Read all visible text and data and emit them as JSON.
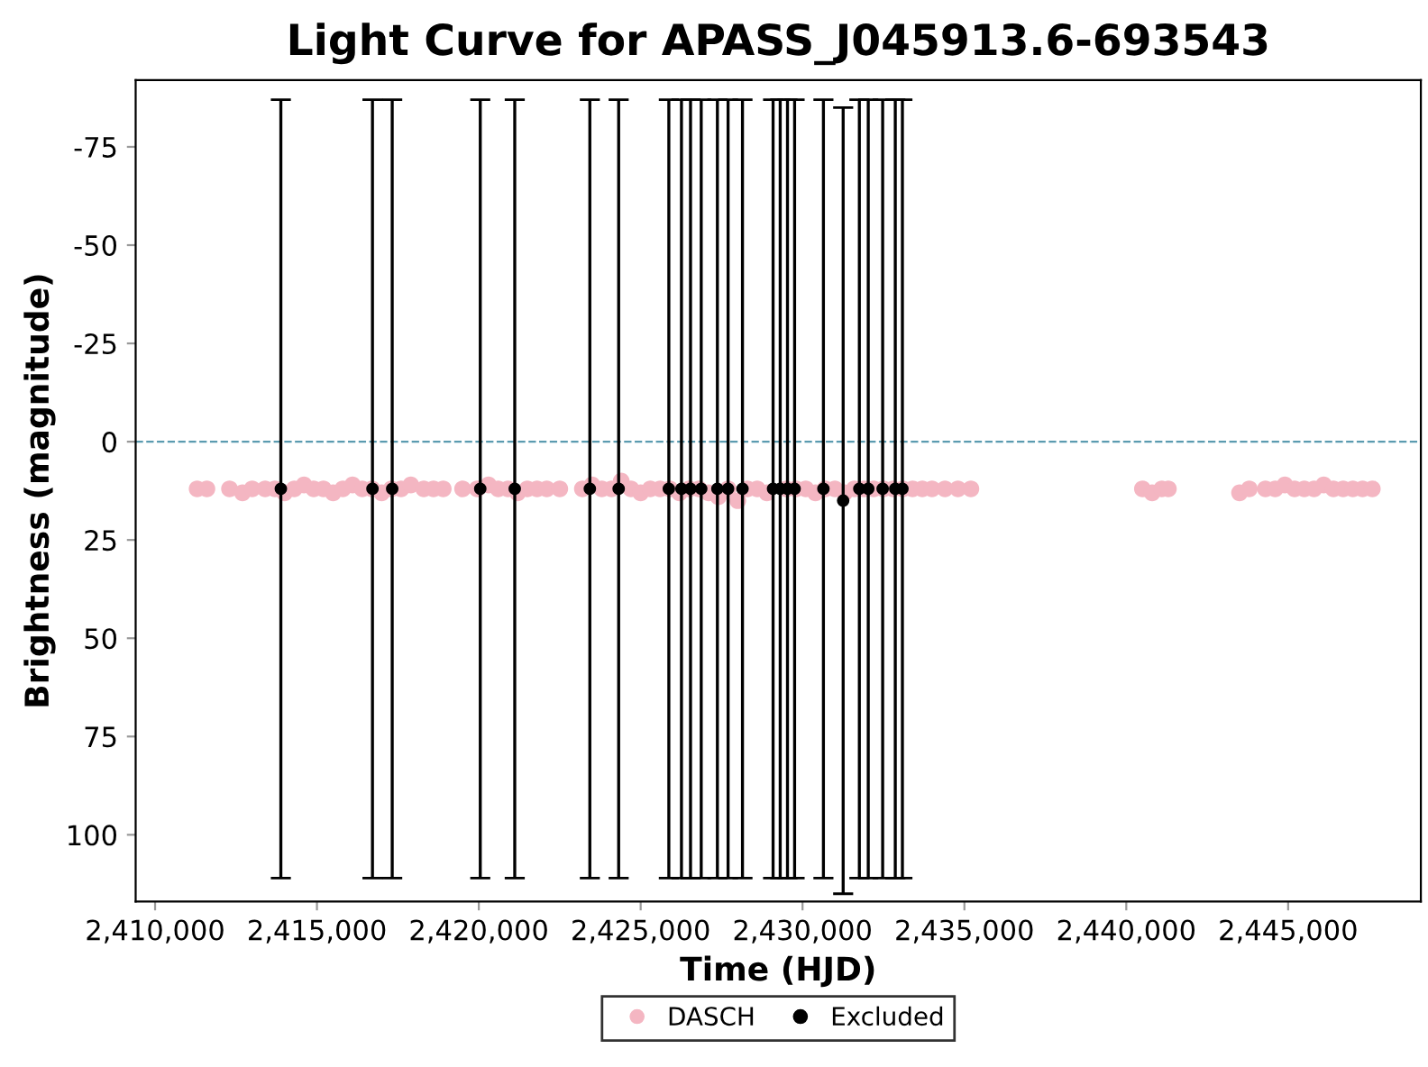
{
  "chart_data": {
    "type": "scatter",
    "title": "Light Curve for APASS_J045913.6-693543",
    "xlabel": "Time (HJD)",
    "ylabel": "Brightness (magnitude)",
    "xlim": [
      2409400,
      2449100
    ],
    "xticks": [
      {
        "value": 2410000,
        "label": "2,410,000"
      },
      {
        "value": 2415000,
        "label": "2,415,000"
      },
      {
        "value": 2420000,
        "label": "2,420,000"
      },
      {
        "value": 2425000,
        "label": "2,425,000"
      },
      {
        "value": 2430000,
        "label": "2,430,000"
      },
      {
        "value": 2435000,
        "label": "2,435,000"
      },
      {
        "value": 2440000,
        "label": "2,440,000"
      },
      {
        "value": 2445000,
        "label": "2,445,000"
      }
    ],
    "ylim": [
      117,
      -92
    ],
    "yticks": [
      -75,
      -50,
      -25,
      0,
      25,
      50,
      75,
      100
    ],
    "ref_lines": [
      {
        "axis": "y",
        "value": 0,
        "color": "#5b9bb0",
        "line_style": "dashed"
      }
    ],
    "legend": "bottom",
    "marker": "circle",
    "grid": false,
    "series": [
      {
        "name": "DASCH",
        "color": "#f4b6c2",
        "x": [
          2411300,
          2411600,
          2412300,
          2412700,
          2413000,
          2413400,
          2413700,
          2414000,
          2414300,
          2414600,
          2414900,
          2415200,
          2415500,
          2415800,
          2416100,
          2416400,
          2416700,
          2417000,
          2417300,
          2417600,
          2417900,
          2418300,
          2418600,
          2418900,
          2419500,
          2419950,
          2420300,
          2420600,
          2420900,
          2421200,
          2421500,
          2421800,
          2422100,
          2422500,
          2423200,
          2423500,
          2423800,
          2424100,
          2424400,
          2424700,
          2425000,
          2425300,
          2425600,
          2425900,
          2426200,
          2426500,
          2426800,
          2427100,
          2427400,
          2427700,
          2428000,
          2428300,
          2428600,
          2428900,
          2429500,
          2429800,
          2430100,
          2430400,
          2430700,
          2431000,
          2431300,
          2431600,
          2431900,
          2432200,
          2432500,
          2432800,
          2433100,
          2433400,
          2433700,
          2434000,
          2434400,
          2434800,
          2435200,
          2440500,
          2440800,
          2441100,
          2441300,
          2443500,
          2443800,
          2444300,
          2444600,
          2444900,
          2445200,
          2445500,
          2445800,
          2446100,
          2446400,
          2446700,
          2447000,
          2447300,
          2447600
        ],
        "values": [
          12,
          12,
          12,
          13,
          12,
          12,
          12,
          13,
          12,
          11,
          12,
          12,
          13,
          12,
          11,
          12,
          12,
          13,
          12,
          12,
          11,
          12,
          12,
          12,
          12,
          12,
          11,
          12,
          12,
          13,
          12,
          12,
          12,
          12,
          12,
          11,
          12,
          12,
          10,
          12,
          13,
          12,
          12,
          12,
          13,
          12,
          12,
          13,
          14,
          12,
          15,
          12,
          12,
          13,
          12,
          12,
          12,
          13,
          12,
          12,
          13,
          12,
          12,
          12,
          12,
          12,
          12,
          12,
          12,
          12,
          12,
          12,
          12,
          12,
          13,
          12,
          12,
          13,
          12,
          12,
          12,
          11,
          12,
          12,
          12,
          11,
          12,
          12,
          12,
          12,
          12
        ]
      },
      {
        "name": "Excluded",
        "color": "#000000",
        "x": [
          2413885,
          2416715,
          2417325,
          2420045,
          2421110,
          2423430,
          2424320,
          2425870,
          2426260,
          2426540,
          2426870,
          2427370,
          2427700,
          2428145,
          2429090,
          2429310,
          2429535,
          2429755,
          2430645,
          2431255,
          2431755,
          2432030,
          2432475,
          2432865,
          2433085
        ],
        "values": [
          12,
          12,
          12,
          12,
          12,
          12,
          12,
          12,
          12,
          12,
          12,
          12,
          12,
          12,
          12,
          12,
          12,
          12,
          12,
          15,
          12,
          12,
          12,
          12,
          12
        ],
        "errors": [
          99,
          99,
          99,
          99,
          99,
          99,
          99,
          99,
          99,
          99,
          99,
          99,
          99,
          99,
          99,
          99,
          99,
          99,
          99,
          100,
          99,
          99,
          99,
          99,
          99
        ]
      }
    ]
  }
}
